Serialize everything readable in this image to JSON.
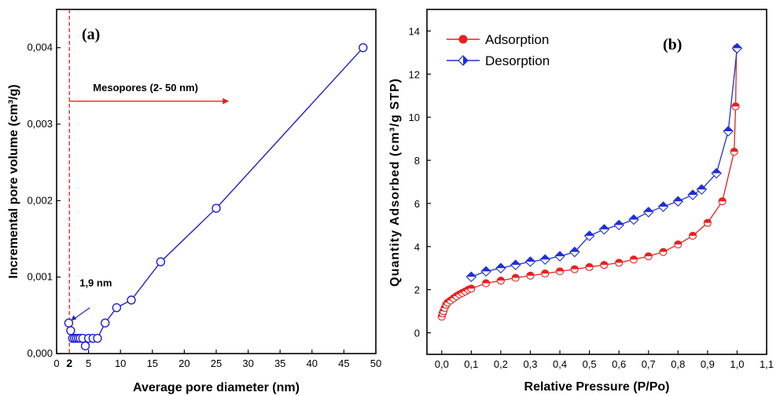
{
  "figure": {
    "panel_a_label": "(a)",
    "panel_b_label": "(b)"
  },
  "chart_data": [
    {
      "type": "scatter",
      "panel": "(a)",
      "xlabel": "Average pore diameter (nm)",
      "ylabel": "Incremental pore volume (cm³/g)",
      "xlim": [
        0,
        50
      ],
      "ylim": [
        0,
        0.0045
      ],
      "xticks": [
        "0",
        "5",
        "10",
        "15",
        "20",
        "25",
        "30",
        "35",
        "40",
        "45",
        "50"
      ],
      "yticks": [
        "0,000",
        "0,001",
        "0,002",
        "0,003",
        "0,004"
      ],
      "marker_line_label": "2",
      "marker_line_x": 2,
      "annotations": {
        "mesopores": "Mesopores (2- 50 nm)",
        "point": "1,9 nm"
      },
      "color": "#1f1fd6",
      "accent_color": "#e8201e",
      "series": [
        {
          "x": [
            1.9,
            2.2,
            2.5,
            2.8,
            3.1,
            3.4,
            3.7,
            4.1,
            4.5,
            5.0,
            5.7,
            6.4,
            7.6,
            9.4,
            11.7,
            16.3,
            25.0,
            48.0
          ],
          "y": [
            0.0004,
            0.0003,
            0.0002,
            0.0002,
            0.0002,
            0.0002,
            0.0002,
            0.0002,
            0.0001,
            0.0002,
            0.0002,
            0.0002,
            0.0004,
            0.0006,
            0.0007,
            0.0012,
            0.0019,
            0.004
          ]
        }
      ]
    },
    {
      "type": "line",
      "panel": "(b)",
      "xlabel": "Relative Pressure (P/Po)",
      "ylabel": "Quantity Adsorbed (cm³/g STP)",
      "xlim": [
        -0.05,
        1.1
      ],
      "ylim": [
        -1,
        15
      ],
      "xticks": [
        "0,0",
        "0,1",
        "0,2",
        "0,3",
        "0,4",
        "0,5",
        "0,6",
        "0,7",
        "0,8",
        "0,9",
        "1,0",
        "1,1"
      ],
      "yticks": [
        "0",
        "2",
        "4",
        "6",
        "8",
        "10",
        "12",
        "14"
      ],
      "legend_position": "top-left",
      "series": [
        {
          "name": "Adsorption",
          "color": "#e8201e",
          "x": [
            0.0,
            0.003,
            0.006,
            0.01,
            0.015,
            0.02,
            0.03,
            0.04,
            0.05,
            0.06,
            0.07,
            0.08,
            0.09,
            0.1,
            0.15,
            0.2,
            0.25,
            0.3,
            0.35,
            0.4,
            0.45,
            0.5,
            0.55,
            0.6,
            0.65,
            0.7,
            0.75,
            0.8,
            0.85,
            0.9,
            0.95,
            0.99,
            0.995,
            0.998
          ],
          "y": [
            0.75,
            0.9,
            1.0,
            1.15,
            1.3,
            1.4,
            1.5,
            1.6,
            1.7,
            1.78,
            1.85,
            1.92,
            2.0,
            2.05,
            2.3,
            2.42,
            2.55,
            2.65,
            2.75,
            2.85,
            2.95,
            3.05,
            3.15,
            3.25,
            3.4,
            3.55,
            3.75,
            4.1,
            4.5,
            5.1,
            6.1,
            8.4,
            10.5,
            13.2
          ]
        },
        {
          "name": "Desorption",
          "color": "#1f2fd6",
          "x": [
            0.1,
            0.15,
            0.2,
            0.25,
            0.3,
            0.35,
            0.4,
            0.45,
            0.5,
            0.55,
            0.6,
            0.65,
            0.7,
            0.75,
            0.8,
            0.85,
            0.88,
            0.93,
            0.97,
            1.0
          ],
          "y": [
            2.6,
            2.85,
            3.0,
            3.15,
            3.3,
            3.4,
            3.55,
            3.75,
            4.5,
            4.8,
            5.0,
            5.25,
            5.6,
            5.85,
            6.1,
            6.4,
            6.65,
            7.4,
            9.35,
            13.2
          ]
        }
      ]
    }
  ]
}
